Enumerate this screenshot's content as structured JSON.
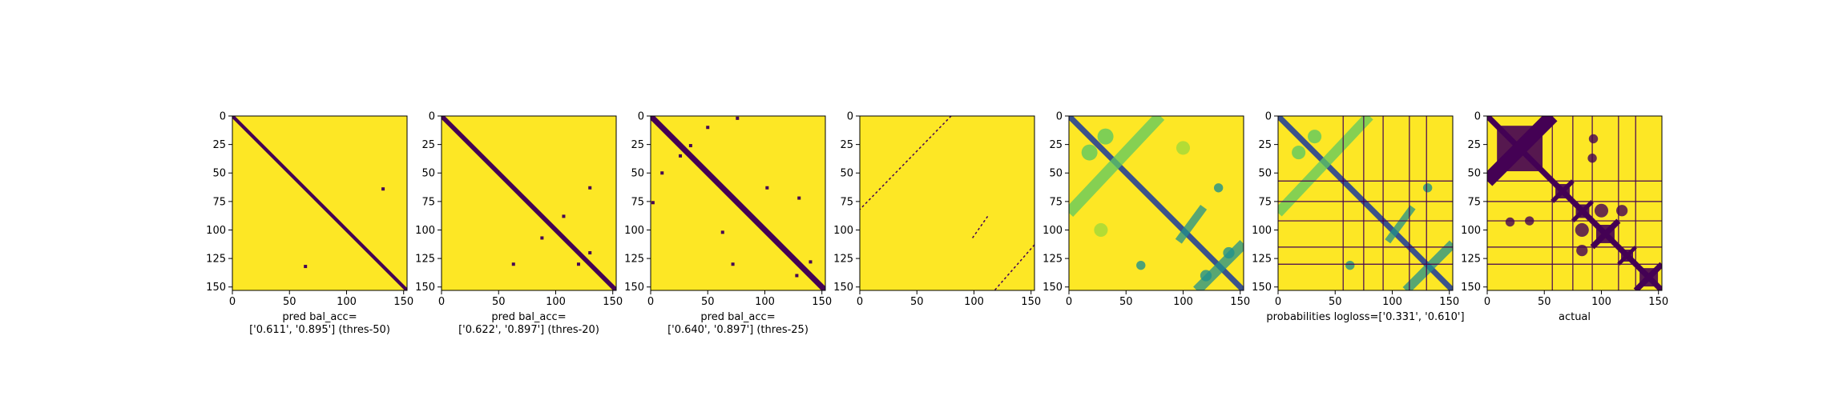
{
  "chart_data": [
    {
      "type": "heatmap",
      "xlabel_lines": [
        "pred bal_acc=",
        "['0.611', '0.895'] (thres-50)"
      ],
      "xlim": [
        0,
        153
      ],
      "ylim": [
        153,
        0
      ],
      "xticks": [
        0,
        50,
        100,
        150
      ],
      "yticks": [
        0,
        25,
        50,
        75,
        100,
        125,
        150
      ],
      "background_color": "#fde725",
      "features": [
        {
          "kind": "diagonal",
          "start": [
            0,
            0
          ],
          "end": [
            153,
            153
          ],
          "width": 3,
          "color": "#440154"
        },
        {
          "kind": "dot",
          "x": 132,
          "y": 64,
          "color": "#440154"
        },
        {
          "kind": "dot",
          "x": 64,
          "y": 132,
          "color": "#440154"
        }
      ]
    },
    {
      "type": "heatmap",
      "xlabel_lines": [
        "pred bal_acc=",
        "['0.622', '0.897'] (thres-20)"
      ],
      "xlim": [
        0,
        153
      ],
      "ylim": [
        153,
        0
      ],
      "xticks": [
        0,
        50,
        100,
        150
      ],
      "yticks": [
        0,
        25,
        50,
        75,
        100,
        125,
        150
      ],
      "background_color": "#fde725",
      "features": [
        {
          "kind": "diagonal",
          "start": [
            0,
            0
          ],
          "end": [
            153,
            153
          ],
          "width": 4,
          "color": "#440154"
        },
        {
          "kind": "dot",
          "x": 130,
          "y": 63,
          "color": "#440154"
        },
        {
          "kind": "dot",
          "x": 63,
          "y": 130,
          "color": "#440154"
        },
        {
          "kind": "dot",
          "x": 107,
          "y": 88,
          "color": "#440154"
        },
        {
          "kind": "dot",
          "x": 88,
          "y": 107,
          "color": "#440154"
        },
        {
          "kind": "dot",
          "x": 130,
          "y": 120,
          "color": "#440154"
        },
        {
          "kind": "dot",
          "x": 120,
          "y": 130,
          "color": "#440154"
        }
      ]
    },
    {
      "type": "heatmap",
      "xlabel_lines": [
        "pred bal_acc=",
        "['0.640', '0.897'] (thres-25)"
      ],
      "xlim": [
        0,
        153
      ],
      "ylim": [
        153,
        0
      ],
      "xticks": [
        0,
        50,
        100,
        150
      ],
      "yticks": [
        0,
        25,
        50,
        75,
        100,
        125,
        150
      ],
      "background_color": "#fde725",
      "features": [
        {
          "kind": "diagonal",
          "start": [
            0,
            0
          ],
          "end": [
            153,
            153
          ],
          "width": 5,
          "color": "#440154"
        },
        {
          "kind": "dot",
          "x": 102,
          "y": 63,
          "color": "#440154"
        },
        {
          "kind": "dot",
          "x": 63,
          "y": 102,
          "color": "#440154"
        },
        {
          "kind": "dot",
          "x": 130,
          "y": 72,
          "color": "#440154"
        },
        {
          "kind": "dot",
          "x": 72,
          "y": 130,
          "color": "#440154"
        },
        {
          "kind": "dot",
          "x": 140,
          "y": 128,
          "color": "#440154"
        },
        {
          "kind": "dot",
          "x": 128,
          "y": 140,
          "color": "#440154"
        },
        {
          "kind": "dot",
          "x": 50,
          "y": 10,
          "color": "#440154"
        },
        {
          "kind": "dot",
          "x": 10,
          "y": 50,
          "color": "#440154"
        },
        {
          "kind": "dot",
          "x": 76,
          "y": 2,
          "color": "#440154"
        },
        {
          "kind": "dot",
          "x": 2,
          "y": 76,
          "color": "#440154"
        },
        {
          "kind": "dot",
          "x": 26,
          "y": 35,
          "color": "#440154"
        },
        {
          "kind": "dot",
          "x": 35,
          "y": 26,
          "color": "#440154"
        }
      ]
    },
    {
      "type": "heatmap",
      "xlabel_lines": [],
      "xlim": [
        0,
        153
      ],
      "ylim": [
        153,
        0
      ],
      "xticks": [
        0,
        50,
        100,
        150
      ],
      "yticks": [
        0,
        25,
        50,
        75,
        100,
        125,
        150
      ],
      "background_color": "#fde725",
      "features": [
        {
          "kind": "dashed-line",
          "start": [
            80,
            0
          ],
          "end": [
            0,
            82
          ],
          "color": "#440154"
        },
        {
          "kind": "dashed-line",
          "start": [
            112,
            88
          ],
          "end": [
            98,
            108
          ],
          "color": "#440154"
        },
        {
          "kind": "dashed-line",
          "start": [
            153,
            113
          ],
          "end": [
            118,
            153
          ],
          "color": "#440154"
        }
      ]
    },
    {
      "type": "heatmap",
      "xlabel_lines": [],
      "xlim": [
        0,
        153
      ],
      "ylim": [
        153,
        0
      ],
      "xticks": [
        0,
        50,
        100,
        150
      ],
      "yticks": [
        0,
        25,
        50,
        75,
        100,
        125,
        150
      ],
      "background_color": "#fde725",
      "features": [
        {
          "kind": "diagonal",
          "start": [
            0,
            0
          ],
          "end": [
            153,
            153
          ],
          "width": 5,
          "color": "#3b528b"
        },
        {
          "kind": "band",
          "start": [
            80,
            0
          ],
          "end": [
            0,
            85
          ],
          "width": 10,
          "color": "#5ec962"
        },
        {
          "kind": "band",
          "start": [
            153,
            112
          ],
          "end": [
            112,
            153
          ],
          "width": 9,
          "color": "#21918c"
        },
        {
          "kind": "band",
          "start": [
            118,
            80
          ],
          "end": [
            96,
            110
          ],
          "width": 7,
          "color": "#21918c"
        },
        {
          "kind": "blob",
          "x": 131,
          "y": 63,
          "r": 4,
          "color": "#21918c"
        },
        {
          "kind": "blob",
          "x": 63,
          "y": 131,
          "r": 4,
          "color": "#21918c"
        },
        {
          "kind": "blob",
          "x": 32,
          "y": 18,
          "r": 7,
          "color": "#5ec962"
        },
        {
          "kind": "blob",
          "x": 18,
          "y": 32,
          "r": 7,
          "color": "#5ec962"
        },
        {
          "kind": "blob",
          "x": 100,
          "y": 28,
          "r": 6,
          "color": "#a0da39"
        },
        {
          "kind": "blob",
          "x": 28,
          "y": 100,
          "r": 6,
          "color": "#a0da39"
        },
        {
          "kind": "blob",
          "x": 140,
          "y": 120,
          "r": 5,
          "color": "#21918c"
        },
        {
          "kind": "blob",
          "x": 120,
          "y": 140,
          "r": 5,
          "color": "#21918c"
        }
      ]
    },
    {
      "type": "heatmap",
      "xlabel_lines": [
        "probabilities logloss=['0.331', '0.610']"
      ],
      "xlim": [
        0,
        153
      ],
      "ylim": [
        153,
        0
      ],
      "xticks": [
        0,
        50,
        100,
        150
      ],
      "yticks": [
        0,
        25,
        50,
        75,
        100,
        125,
        150
      ],
      "background_color": "#fde725",
      "features": [
        {
          "kind": "diagonal",
          "start": [
            0,
            0
          ],
          "end": [
            153,
            153
          ],
          "width": 5,
          "color": "#3b528b"
        },
        {
          "kind": "band",
          "start": [
            80,
            0
          ],
          "end": [
            0,
            85
          ],
          "width": 9,
          "color": "#5ec962"
        },
        {
          "kind": "band",
          "start": [
            153,
            112
          ],
          "end": [
            112,
            153
          ],
          "width": 8,
          "color": "#21918c"
        },
        {
          "kind": "band",
          "start": [
            118,
            80
          ],
          "end": [
            96,
            110
          ],
          "width": 6,
          "color": "#21918c"
        },
        {
          "kind": "blob",
          "x": 131,
          "y": 63,
          "r": 4,
          "color": "#21918c"
        },
        {
          "kind": "blob",
          "x": 63,
          "y": 131,
          "r": 4,
          "color": "#21918c"
        },
        {
          "kind": "blob",
          "x": 32,
          "y": 18,
          "r": 6,
          "color": "#5ec962"
        },
        {
          "kind": "blob",
          "x": 18,
          "y": 32,
          "r": 6,
          "color": "#5ec962"
        },
        {
          "kind": "vline",
          "x": 57,
          "color": "#440154"
        },
        {
          "kind": "vline",
          "x": 75,
          "color": "#440154"
        },
        {
          "kind": "vline",
          "x": 92,
          "color": "#440154"
        },
        {
          "kind": "vline",
          "x": 115,
          "color": "#440154"
        },
        {
          "kind": "vline",
          "x": 130,
          "color": "#440154"
        },
        {
          "kind": "hline",
          "y": 57,
          "color": "#440154"
        },
        {
          "kind": "hline",
          "y": 75,
          "color": "#440154"
        },
        {
          "kind": "hline",
          "y": 92,
          "color": "#440154"
        },
        {
          "kind": "hline",
          "y": 115,
          "color": "#440154"
        },
        {
          "kind": "hline",
          "y": 130,
          "color": "#440154"
        }
      ]
    },
    {
      "type": "heatmap",
      "xlabel_lines": [
        "actual"
      ],
      "xlim": [
        0,
        153
      ],
      "ylim": [
        153,
        0
      ],
      "xticks": [
        0,
        50,
        100,
        150
      ],
      "yticks": [
        0,
        25,
        50,
        75,
        100,
        125,
        150
      ],
      "background_color": "#fde725",
      "features": [
        {
          "kind": "diagonal",
          "start": [
            0,
            0
          ],
          "end": [
            153,
            153
          ],
          "width": 5,
          "color": "#440154"
        },
        {
          "kind": "square",
          "x0": 0,
          "y0": 0,
          "x1": 57,
          "y1": 57,
          "color": "#440154"
        },
        {
          "kind": "square",
          "x0": 57,
          "y0": 57,
          "x1": 75,
          "y1": 75,
          "color": "#440154"
        },
        {
          "kind": "square",
          "x0": 75,
          "y0": 75,
          "x1": 92,
          "y1": 92,
          "color": "#440154"
        },
        {
          "kind": "square",
          "x0": 92,
          "y0": 92,
          "x1": 115,
          "y1": 115,
          "color": "#440154"
        },
        {
          "kind": "square",
          "x0": 115,
          "y0": 115,
          "x1": 130,
          "y1": 130,
          "color": "#440154"
        },
        {
          "kind": "square",
          "x0": 130,
          "y0": 130,
          "x1": 153,
          "y1": 153,
          "color": "#440154"
        },
        {
          "kind": "blob",
          "x": 100,
          "y": 83,
          "r": 6,
          "color": "#440154"
        },
        {
          "kind": "blob",
          "x": 83,
          "y": 100,
          "r": 6,
          "color": "#440154"
        },
        {
          "kind": "blob",
          "x": 118,
          "y": 83,
          "r": 5,
          "color": "#440154"
        },
        {
          "kind": "blob",
          "x": 83,
          "y": 118,
          "r": 5,
          "color": "#440154"
        },
        {
          "kind": "blob",
          "x": 93,
          "y": 20,
          "r": 4,
          "color": "#440154"
        },
        {
          "kind": "blob",
          "x": 20,
          "y": 93,
          "r": 4,
          "color": "#440154"
        },
        {
          "kind": "blob",
          "x": 92,
          "y": 37,
          "r": 4,
          "color": "#440154"
        },
        {
          "kind": "blob",
          "x": 37,
          "y": 92,
          "r": 4,
          "color": "#440154"
        },
        {
          "kind": "vline",
          "x": 57,
          "color": "#440154"
        },
        {
          "kind": "vline",
          "x": 75,
          "color": "#440154"
        },
        {
          "kind": "vline",
          "x": 92,
          "color": "#440154"
        },
        {
          "kind": "vline",
          "x": 115,
          "color": "#440154"
        },
        {
          "kind": "vline",
          "x": 130,
          "color": "#440154"
        },
        {
          "kind": "hline",
          "y": 57,
          "color": "#440154"
        },
        {
          "kind": "hline",
          "y": 75,
          "color": "#440154"
        },
        {
          "kind": "hline",
          "y": 92,
          "color": "#440154"
        },
        {
          "kind": "hline",
          "y": 115,
          "color": "#440154"
        },
        {
          "kind": "hline",
          "y": 130,
          "color": "#440154"
        }
      ]
    }
  ]
}
